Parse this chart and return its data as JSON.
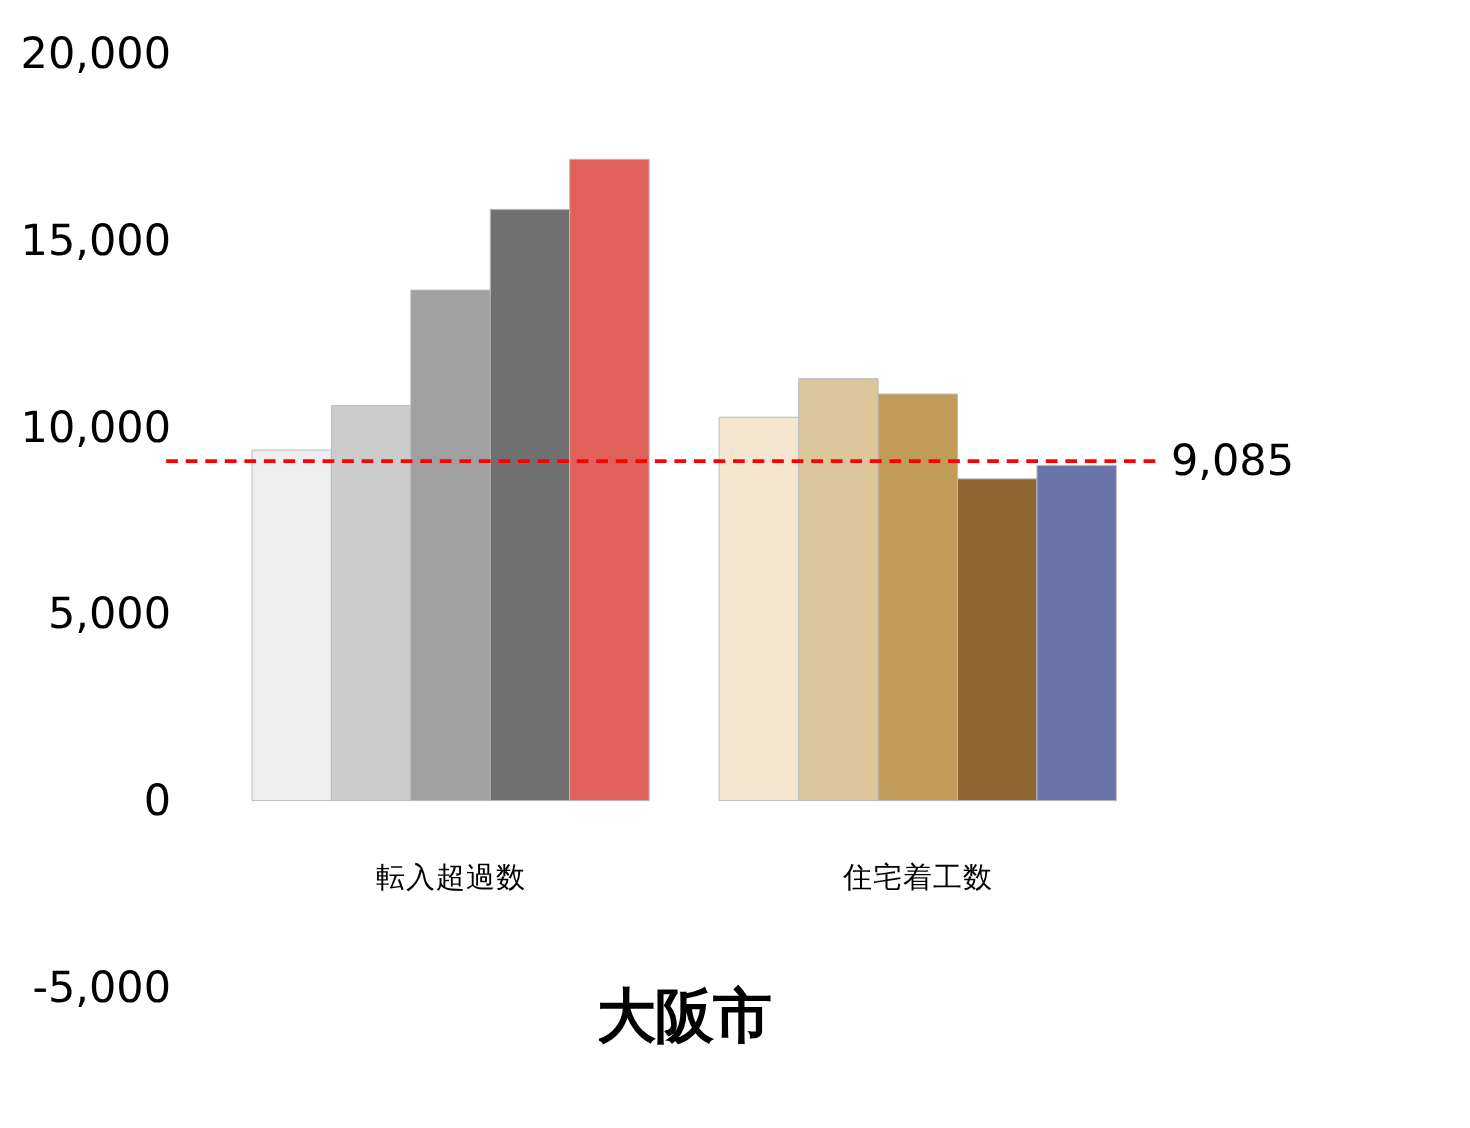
{
  "chart_data": {
    "type": "bar",
    "title": "大阪市",
    "categories": [
      "転入超過数",
      "住宅着工数"
    ],
    "series": [
      {
        "colors": [
          "#eeeeee",
          "#f5e6cf"
        ],
        "values": [
          9380,
          10260
        ]
      },
      {
        "colors": [
          "#cccccc",
          "#dcc69c"
        ],
        "values": [
          10570,
          11290
        ]
      },
      {
        "colors": [
          "#a0a0a0",
          "#c09c58"
        ],
        "values": [
          13660,
          10880
        ]
      },
      {
        "colors": [
          "#707070",
          "#8e6630"
        ],
        "values": [
          15820,
          8610
        ]
      },
      {
        "colors": [
          "#e0605a",
          "#6a74a8"
        ],
        "values": [
          17160,
          8970
        ]
      }
    ],
    "ylim": [
      -5000,
      20000
    ],
    "yticks": [
      {
        "value": -5000,
        "label": "-5,000"
      },
      0,
      {
        "value": 5000,
        "label": "5,000"
      },
      {
        "value": 10000,
        "label": "10,000"
      },
      {
        "value": 15000,
        "label": "15,000"
      },
      {
        "value": 20000,
        "label": "20,000"
      }
    ],
    "grid": false,
    "ref_lines": [
      {
        "axis": "y",
        "value": 9085,
        "label": "9,085",
        "color": "#ff0000",
        "line_style": "dashed"
      }
    ]
  }
}
